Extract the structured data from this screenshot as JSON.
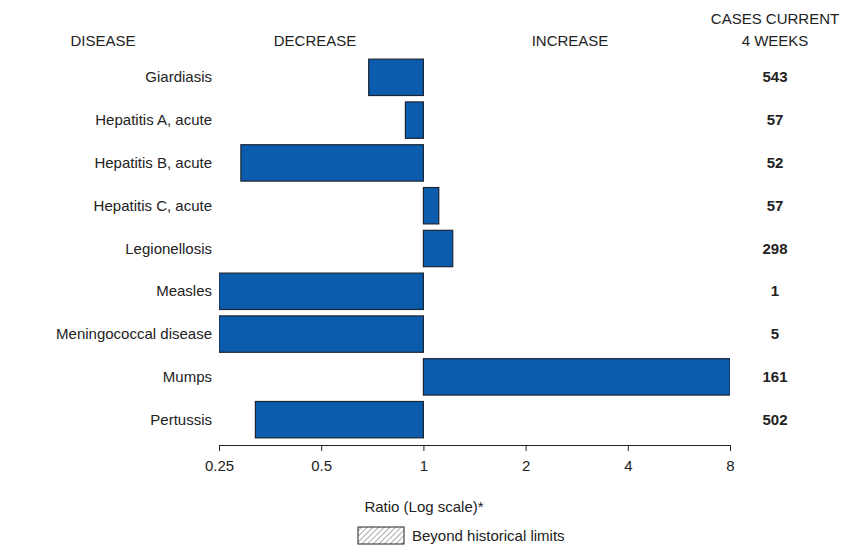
{
  "chart_data": {
    "type": "bar",
    "orientation": "horizontal",
    "log": "x",
    "categories": [
      "Giardiasis",
      "Hepatitis A, acute",
      "Hepatitis B, acute",
      "Hepatitis C, acute",
      "Legionellosis",
      "Measles",
      "Meningococcal disease",
      "Mumps",
      "Pertussis"
    ],
    "values": [
      0.69,
      0.885,
      0.29,
      1.11,
      1.22,
      0.25,
      0.25,
      8,
      0.32
    ],
    "cases": [
      543,
      57,
      52,
      57,
      298,
      1,
      5,
      161,
      502
    ],
    "color": "#0b5cad",
    "xlim": [
      0.25,
      8
    ],
    "xticks": [
      0.25,
      0.5,
      1,
      2,
      4,
      8
    ],
    "x_label": "Ratio (Log scale)*",
    "headers": {
      "category": "DISEASE",
      "decrease": "DECREASE",
      "increase": "INCREASE",
      "cases": [
        "CASES CURRENT",
        "4 WEEKS"
      ]
    },
    "legend_label": "Beyond historical limits"
  }
}
